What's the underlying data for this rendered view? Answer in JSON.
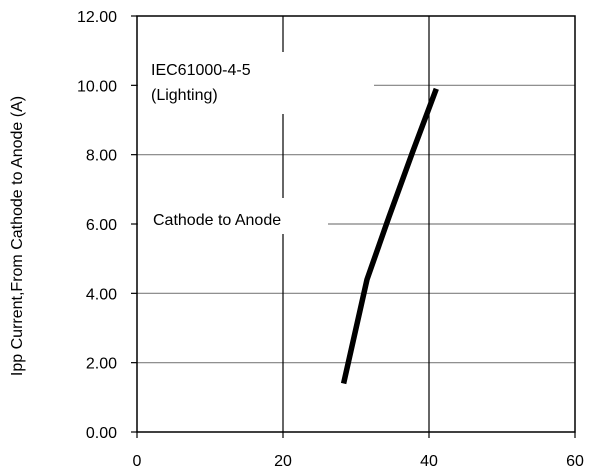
{
  "chart_data": {
    "type": "line",
    "title": "",
    "xlabel": "",
    "ylabel": "Ipp Current,From Cathode to Anode (A)",
    "xlim": [
      0,
      60
    ],
    "ylim": [
      0,
      12
    ],
    "x_ticks": [
      "0",
      "20",
      "40",
      "60"
    ],
    "y_ticks": [
      "0.00",
      "2.00",
      "4.00",
      "6.00",
      "8.00",
      "10.00",
      "12.00"
    ],
    "grid": true,
    "annotations": {
      "standard": "IEC61000-4-5",
      "standard_note": "(Lighting)",
      "direction": "Cathode to Anode"
    },
    "series": [
      {
        "x": [
          28.3,
          31.5,
          34.5,
          37.8,
          41.0
        ],
        "y": [
          1.4,
          4.4,
          6.2,
          8.1,
          9.9
        ],
        "color": "#000000"
      }
    ]
  }
}
